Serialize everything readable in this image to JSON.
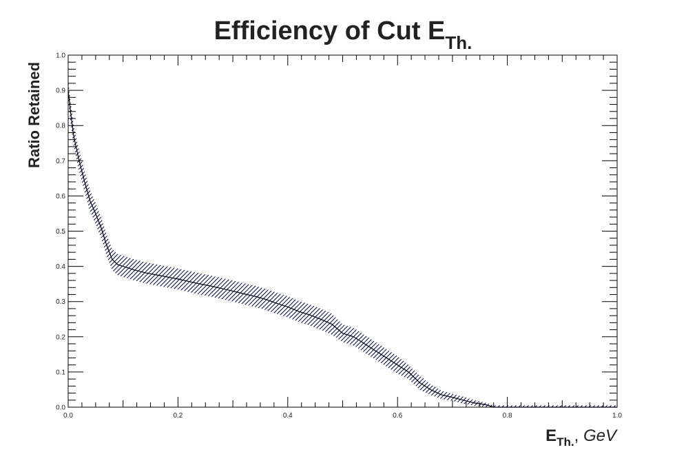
{
  "chart_data": {
    "type": "line",
    "title": {
      "main": "Efficiency of Cut E",
      "sub": "Th."
    },
    "xlabel": {
      "main": "E",
      "sub": "Th.",
      "rest": ", ",
      "unit": "GeV"
    },
    "ylabel": "Ratio Retained",
    "xlim": [
      0.0,
      1.0
    ],
    "ylim": [
      0.0,
      1.0
    ],
    "x_ticks": [
      "0.0",
      "0.2",
      "0.4",
      "0.6",
      "0.8",
      "1.0"
    ],
    "y_ticks": [
      "0.0",
      "0.1",
      "0.2",
      "0.3",
      "0.4",
      "0.5",
      "0.6",
      "0.7",
      "0.8",
      "0.9",
      "1.0"
    ],
    "grid": false,
    "line_color": "#000000",
    "band_color": "#00004d",
    "series": [
      {
        "x": [
          0.0,
          0.005,
          0.01,
          0.02,
          0.03,
          0.04,
          0.05,
          0.06,
          0.07,
          0.08,
          0.09,
          0.1,
          0.12,
          0.14,
          0.16,
          0.18,
          0.2,
          0.22,
          0.24,
          0.26,
          0.28,
          0.3,
          0.32,
          0.34,
          0.36,
          0.38,
          0.4,
          0.42,
          0.44,
          0.46,
          0.48,
          0.5,
          0.52,
          0.54,
          0.56,
          0.58,
          0.6,
          0.62,
          0.64,
          0.66,
          0.68,
          0.7,
          0.72,
          0.74,
          0.76,
          0.77,
          0.775,
          0.8,
          0.85,
          0.9,
          0.95,
          1.0
        ],
        "y": [
          0.9,
          0.83,
          0.77,
          0.7,
          0.64,
          0.585,
          0.55,
          0.51,
          0.46,
          0.42,
          0.405,
          0.4,
          0.39,
          0.382,
          0.376,
          0.37,
          0.364,
          0.357,
          0.35,
          0.344,
          0.337,
          0.33,
          0.322,
          0.315,
          0.306,
          0.295,
          0.285,
          0.272,
          0.262,
          0.25,
          0.236,
          0.21,
          0.2,
          0.18,
          0.16,
          0.14,
          0.12,
          0.1,
          0.07,
          0.05,
          0.035,
          0.028,
          0.02,
          0.012,
          0.007,
          0.003,
          0.0,
          0.0,
          0.0,
          0.0,
          0.0,
          0.0
        ],
        "err": [
          0.03,
          0.03,
          0.03,
          0.03,
          0.03,
          0.03,
          0.03,
          0.03,
          0.03,
          0.03,
          0.03,
          0.03,
          0.03,
          0.03,
          0.03,
          0.03,
          0.03,
          0.03,
          0.03,
          0.03,
          0.03,
          0.03,
          0.03,
          0.03,
          0.03,
          0.03,
          0.03,
          0.03,
          0.03,
          0.03,
          0.03,
          0.025,
          0.025,
          0.025,
          0.025,
          0.025,
          0.025,
          0.02,
          0.02,
          0.015,
          0.012,
          0.01,
          0.01,
          0.008,
          0.006,
          0.005,
          0.005,
          0.005,
          0.005,
          0.005,
          0.005,
          0.005
        ]
      }
    ]
  }
}
